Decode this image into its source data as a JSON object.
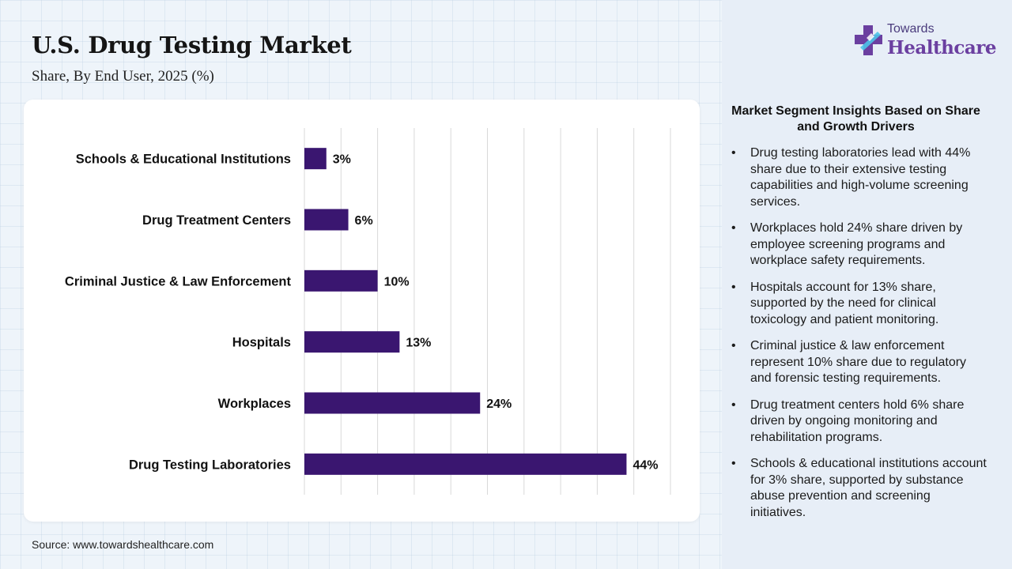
{
  "header": {
    "title": "U.S. Drug Testing Market",
    "subtitle": "Share, By End User, 2025 (%)"
  },
  "logo": {
    "line1": "Towards",
    "line2": "Healthcare",
    "icon": "cross-logo-icon"
  },
  "colors": {
    "bar": "#3a1670",
    "logo_primary": "#6b3fa0",
    "logo_accent": "#4cc3e8"
  },
  "chart_data": {
    "type": "bar",
    "orientation": "horizontal",
    "categories": [
      "Schools & Educational Institutions",
      "Drug Treatment Centers",
      "Criminal Justice & Law Enforcement",
      "Hospitals",
      "Workplaces",
      "Drug Testing Laboratories"
    ],
    "values": [
      3,
      6,
      10,
      13,
      24,
      44
    ],
    "data_labels": [
      "3%",
      "6%",
      "10%",
      "13%",
      "24%",
      "44%"
    ],
    "xlim": [
      0,
      50
    ],
    "grid": true,
    "legend": "none"
  },
  "insights": {
    "title": "Market Segment Insights Based on Share and Growth Drivers",
    "bullet": "•",
    "items": [
      "Drug testing laboratories lead with 44% share due to their extensive testing capabilities and high-volume screening services.",
      "Workplaces hold 24% share driven by employee screening programs and workplace safety requirements.",
      "Hospitals account for 13% share, supported by the need for clinical toxicology and patient monitoring.",
      "Criminal justice & law enforcement represent 10% share due to regulatory and forensic testing requirements.",
      "Drug treatment centers hold 6% share driven by ongoing monitoring and rehabilitation programs.",
      "Schools & educational institutions account for 3% share, supported by substance abuse prevention and screening initiatives."
    ]
  },
  "footer": {
    "source": "Source: www.towardshealthcare.com"
  }
}
